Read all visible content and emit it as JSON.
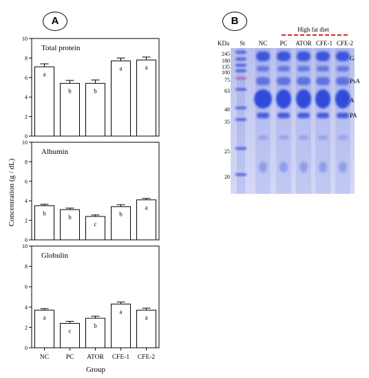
{
  "panels": {
    "A": {
      "label": "A"
    },
    "B": {
      "label": "B"
    }
  },
  "chart_data": [
    {
      "type": "bar",
      "panel": "A",
      "title": "Total protein",
      "categories": [
        "NC",
        "PC",
        "ATOR",
        "CFE-1",
        "CFE-2"
      ],
      "values": [
        7.1,
        5.4,
        5.4,
        7.7,
        7.8
      ],
      "errors": [
        0.3,
        0.3,
        0.35,
        0.3,
        0.3
      ],
      "letters": [
        "a",
        "b",
        "b",
        "a",
        "a"
      ],
      "ylim": [
        0,
        10
      ],
      "yticks": [
        0,
        2,
        4,
        6,
        8,
        10
      ]
    },
    {
      "type": "bar",
      "panel": "A",
      "title": "Albumin",
      "categories": [
        "NC",
        "PC",
        "ATOR",
        "CFE-1",
        "CFE-2"
      ],
      "values": [
        3.5,
        3.1,
        2.4,
        3.4,
        4.1
      ],
      "errors": [
        0.15,
        0.15,
        0.15,
        0.2,
        0.15
      ],
      "letters": [
        "b",
        "b",
        "c",
        "b",
        "a"
      ],
      "ylim": [
        0,
        10
      ],
      "yticks": [
        0,
        2,
        4,
        6,
        8,
        10
      ]
    },
    {
      "type": "bar",
      "panel": "A",
      "title": "Globulin",
      "categories": [
        "NC",
        "PC",
        "ATOR",
        "CFE-1",
        "CFE-2"
      ],
      "values": [
        3.7,
        2.4,
        2.9,
        4.3,
        3.7
      ],
      "errors": [
        0.15,
        0.2,
        0.2,
        0.2,
        0.2
      ],
      "letters": [
        "a",
        "c",
        "b",
        "a",
        "a"
      ],
      "ylim": [
        0,
        10
      ],
      "yticks": [
        0,
        2,
        4,
        6,
        8,
        10
      ]
    }
  ],
  "axis_labels": {
    "ylabel": "Concentration (g / dL)",
    "xlabel": "Group"
  },
  "gel": {
    "header_left": "KDa",
    "header_st": "St",
    "header_nc": "NC",
    "diet_label": "High fat diet",
    "lanes": [
      "St",
      "NC",
      "PC",
      "ATOR",
      "CFE-1",
      "CFE-2"
    ],
    "markers": [
      "245",
      "180",
      "135",
      "100",
      "75",
      "63",
      "48",
      "35",
      "25",
      "20"
    ],
    "right_labels": [
      "G",
      "PsA",
      "A",
      "PA"
    ],
    "colors": {
      "gel_bg": "#c9cef2",
      "band": "#2a45d8",
      "dash": "#e02020"
    }
  }
}
